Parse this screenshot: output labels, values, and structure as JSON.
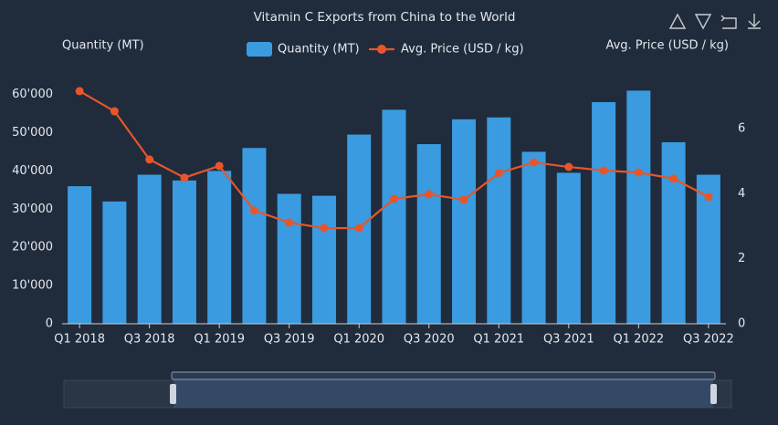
{
  "chart_data": {
    "type": "bar",
    "title": "Vitamin C Exports from China to the World",
    "y_label": "Quantity (MT)",
    "y2_label": "Avg. Price (USD / kg)",
    "legend": "top",
    "categories": [
      "Q1 2018",
      null,
      "Q3 2018",
      null,
      "Q1 2019",
      null,
      "Q3 2019",
      null,
      "Q1 2020",
      null,
      "Q3 2020",
      null,
      "Q1 2021",
      null,
      "Q3 2021",
      null,
      "Q1 2022",
      null,
      "Q3 2022"
    ],
    "series": [
      {
        "name": "Quantity (MT)",
        "type": "bar",
        "color": "#3a9be0",
        "values": [
          36000,
          32000,
          39000,
          37500,
          40000,
          46000,
          34000,
          33500,
          49500,
          56000,
          47000,
          53500,
          54000,
          45000,
          39500,
          58000,
          61000,
          47500,
          39000
        ]
      },
      {
        "name": "Avg. Price (USD / kg)",
        "type": "line",
        "axis": "y2",
        "color": "#e8552a",
        "values": [
          7.15,
          6.53,
          5.05,
          4.49,
          4.85,
          3.48,
          3.11,
          2.94,
          2.94,
          3.84,
          3.98,
          3.81,
          4.63,
          4.96,
          4.82,
          4.71,
          4.65,
          4.46,
          3.9
        ]
      }
    ],
    "ylim": [
      0,
      63000
    ],
    "yticks": [
      0,
      {
        "value": 10000,
        "label": "10'000"
      },
      {
        "value": 20000,
        "label": "20'000"
      },
      {
        "value": 30000,
        "label": "30'000"
      },
      {
        "value": 40000,
        "label": "40'000"
      },
      {
        "value": 50000,
        "label": "50'000"
      },
      {
        "value": 60000,
        "label": "60'000"
      }
    ],
    "y2lim": [
      0,
      7.4
    ],
    "y2ticks": [
      0,
      2,
      4,
      6
    ]
  }
}
